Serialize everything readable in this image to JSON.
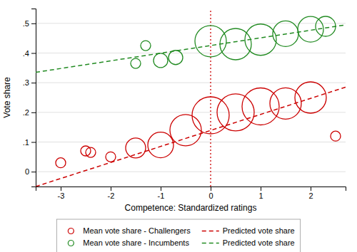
{
  "chart_data": {
    "type": "scatter",
    "xlabel": "Competence: Standardized ratings",
    "ylabel": "Vote share",
    "xlim": [
      -3.5,
      2.7
    ],
    "ylim": [
      -0.05,
      0.55
    ],
    "xticks": [
      -3,
      -2,
      -1,
      0,
      1,
      2
    ],
    "yticks": [
      0,
      {
        "value": 0.1,
        "label": ".1"
      },
      {
        "value": 0.2,
        "label": ".2"
      },
      {
        "value": 0.3,
        "label": ".3"
      },
      {
        "value": 0.4,
        "label": ".4"
      },
      {
        "value": 0.5,
        "label": ".5"
      }
    ],
    "grid": "y",
    "legend": "bottom",
    "series": [
      {
        "name": "Mean vote share - Challengers",
        "type": "scatter",
        "marker": "circle",
        "color": "#cc0000",
        "x": [
          -3.0,
          -2.5,
          -2.4,
          -2.0,
          -1.5,
          -1.0,
          -0.5,
          0.0,
          0.5,
          1.0,
          1.5,
          2.0,
          2.5
        ],
        "values": [
          0.03,
          0.07,
          0.065,
          0.05,
          0.08,
          0.09,
          0.14,
          0.19,
          0.2,
          0.22,
          0.23,
          0.25,
          0.12
        ],
        "size": [
          1,
          1,
          1,
          1,
          3,
          4,
          5,
          6,
          6,
          6,
          5,
          5,
          1
        ]
      },
      {
        "name": "Mean vote share - Incumbents",
        "type": "scatter",
        "marker": "circle",
        "color": "#228B22",
        "x": [
          -1.5,
          -1.3,
          -1.0,
          -0.7,
          0.0,
          0.5,
          1.0,
          1.5,
          2.0,
          2.3
        ],
        "values": [
          0.365,
          0.425,
          0.375,
          0.385,
          0.44,
          0.43,
          0.445,
          0.465,
          0.48,
          0.49
        ],
        "size": [
          1,
          1,
          2,
          2,
          5,
          5,
          5,
          4,
          4,
          3
        ]
      },
      {
        "name": "Predicted vote share",
        "type": "line",
        "line_style": "dashed",
        "color": "#cc0000",
        "x": [
          -3.5,
          2.7
        ],
        "values": [
          -0.05,
          0.285
        ]
      },
      {
        "name": "Predicted vote share",
        "type": "line",
        "line_style": "dashed",
        "color": "#228B22",
        "x": [
          -3.5,
          2.7
        ],
        "values": [
          0.335,
          0.495
        ]
      }
    ],
    "reference_lines": [
      {
        "x": 0,
        "color": "#cc0000",
        "line_style": "dotted"
      }
    ]
  }
}
